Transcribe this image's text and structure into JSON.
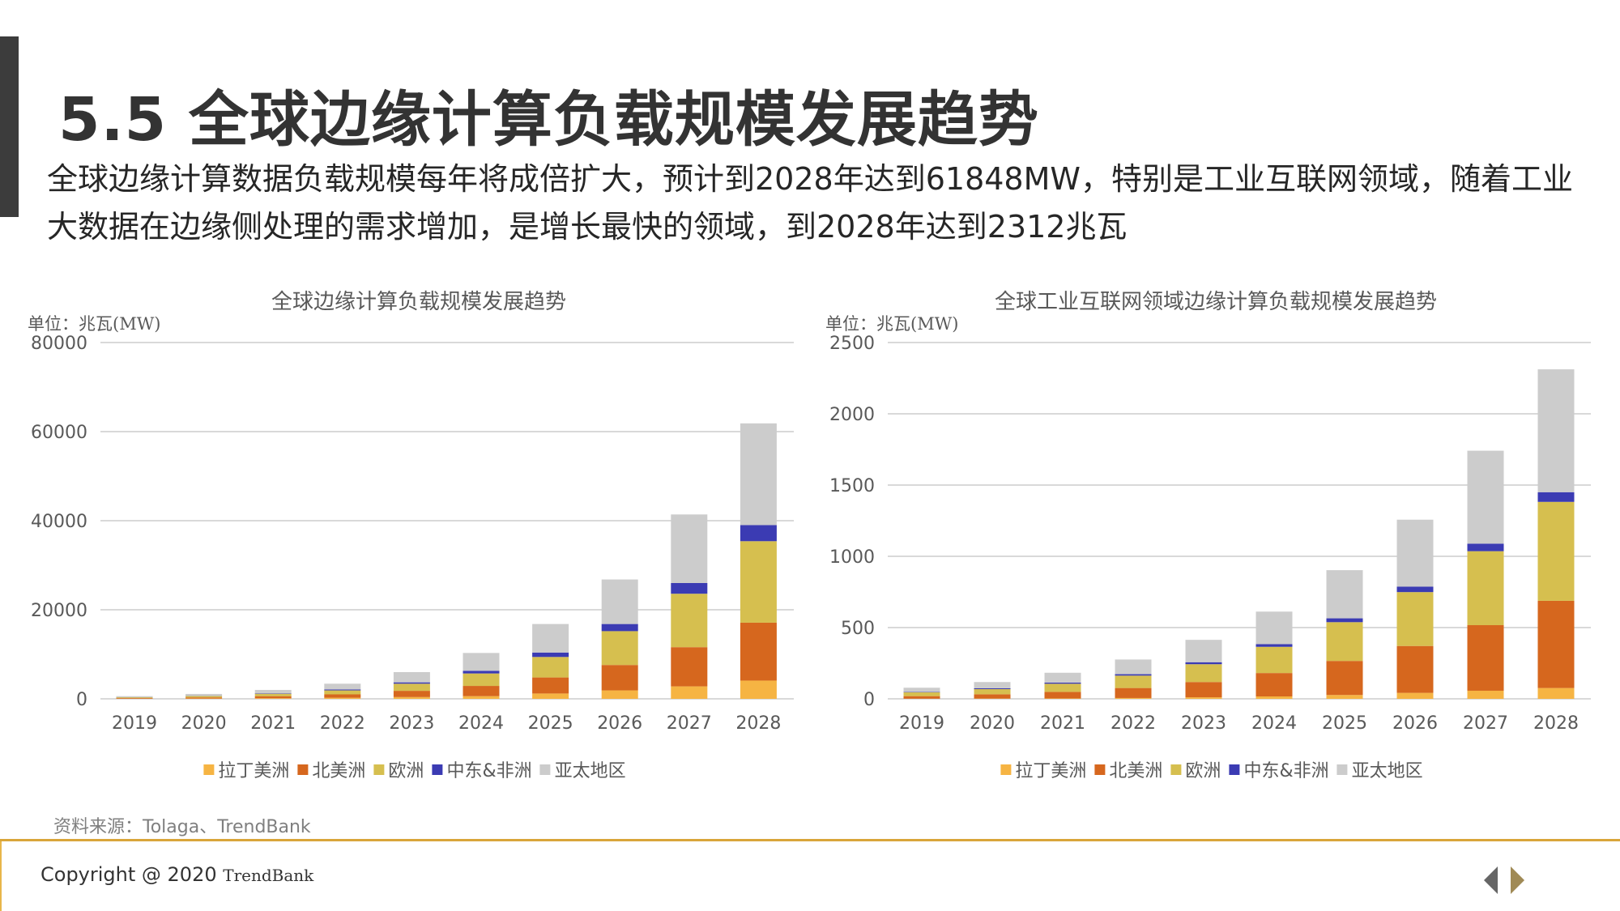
{
  "header": {
    "title": "5.5 全球边缘计算负载规模发展趋势",
    "subtitle": "全球边缘计算数据负载规模每年将成倍扩大，预计到2028年达到61848MW，特别是工业互联网领域，随着工业大数据在边缘侧处理的需求增加，是增长最快的领域，到2028年达到2312兆瓦"
  },
  "legend": [
    {
      "name": "拉丁美洲",
      "color": "#f6b443"
    },
    {
      "name": "北美洲",
      "color": "#d6671e"
    },
    {
      "name": "欧洲",
      "color": "#d6bf4f"
    },
    {
      "name": "中东&非洲",
      "color": "#3b3bb3"
    },
    {
      "name": "亚太地区",
      "color": "#cccccc"
    }
  ],
  "chart_data": [
    {
      "type": "bar",
      "stacked": true,
      "title": "全球边缘计算负载规模发展趋势",
      "unit_label": "单位：兆瓦(MW)",
      "categories": [
        "2019",
        "2020",
        "2021",
        "2022",
        "2023",
        "2024",
        "2025",
        "2026",
        "2027",
        "2028"
      ],
      "ylim": [
        0,
        80000
      ],
      "yticks": [
        "0",
        "20000",
        "40000",
        "60000",
        "80000"
      ],
      "grid": true,
      "legend_position": "bottom",
      "series": [
        {
          "name": "拉丁美洲",
          "values": [
            50,
            80,
            150,
            250,
            400,
            600,
            1200,
            1900,
            2800,
            4100
          ]
        },
        {
          "name": "北美洲",
          "values": [
            140,
            250,
            450,
            750,
            1400,
            2300,
            3600,
            5700,
            8800,
            13000
          ]
        },
        {
          "name": "欧洲",
          "values": [
            160,
            300,
            550,
            900,
            1600,
            2800,
            4600,
            7600,
            12000,
            18300
          ]
        },
        {
          "name": "中东&非洲",
          "values": [
            30,
            50,
            100,
            200,
            300,
            600,
            1000,
            1600,
            2400,
            3600
          ]
        },
        {
          "name": "亚太地区",
          "values": [
            220,
            420,
            750,
            1300,
            2300,
            4000,
            6400,
            10000,
            15400,
            22848
          ]
        }
      ]
    },
    {
      "type": "bar",
      "stacked": true,
      "title": "全球工业互联网领域边缘计算负载规模发展趋势",
      "unit_label": "单位：兆瓦(MW)",
      "categories": [
        "2019",
        "2020",
        "2021",
        "2022",
        "2023",
        "2024",
        "2025",
        "2026",
        "2027",
        "2028"
      ],
      "ylim": [
        0,
        2500
      ],
      "yticks": [
        "0",
        "500",
        "1000",
        "1500",
        "2000",
        "2500"
      ],
      "grid": true,
      "legend_position": "bottom",
      "series": [
        {
          "name": "拉丁美洲",
          "values": [
            1,
            2,
            3,
            6,
            11,
            17,
            27,
            42,
            57,
            76
          ]
        },
        {
          "name": "北美洲",
          "values": [
            18,
            30,
            46,
            70,
            107,
            164,
            239,
            329,
            460,
            612
          ]
        },
        {
          "name": "欧洲",
          "values": [
            27,
            36,
            57,
            87,
            125,
            184,
            272,
            378,
            519,
            694
          ]
        },
        {
          "name": "中东&非洲",
          "values": [
            3,
            6,
            8,
            10,
            14,
            19,
            27,
            38,
            53,
            68
          ]
        },
        {
          "name": "亚太地区",
          "values": [
            29,
            44,
            69,
            103,
            157,
            228,
            338,
            470,
            652,
            862
          ]
        }
      ]
    }
  ],
  "source": "资料来源：Tolaga、TrendBank",
  "footer": {
    "copyright": "Copyright @ 2020",
    "brand": "TrendBank"
  }
}
